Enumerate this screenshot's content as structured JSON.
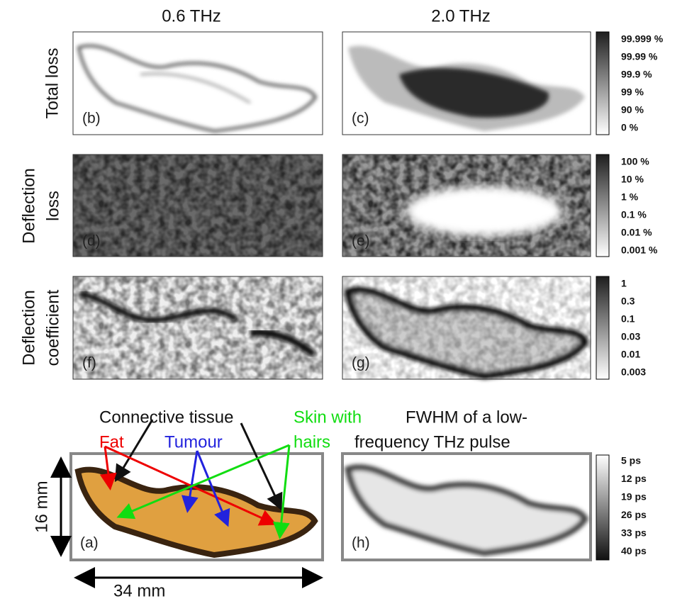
{
  "column_titles": [
    "0.6 THz",
    "2.0 THz"
  ],
  "rows": [
    {
      "label": [
        "Total loss"
      ],
      "panels": [
        "(b)",
        "(c)"
      ],
      "colorbar": [
        "99.999 %",
        "99.99 %",
        "99.9 %",
        "99 %",
        "90 %",
        "0 %"
      ]
    },
    {
      "label": [
        "Deflection",
        "loss"
      ],
      "panels": [
        "(d)",
        "(e)"
      ],
      "colorbar": [
        "100 %",
        "10 %",
        "1 %",
        "0.1 %",
        "0.01 %",
        "0.001 %"
      ]
    },
    {
      "label": [
        "Deflection",
        "coefficient"
      ],
      "panels": [
        "(f)",
        "(g)"
      ],
      "colorbar": [
        "1",
        "0.3",
        "0.1",
        "0.03",
        "0.01",
        "0.003"
      ]
    }
  ],
  "bottom": {
    "photo_panel": "(a)",
    "fwhm_panel": "(h)",
    "height": "16 mm",
    "width": "34 mm",
    "annotations": {
      "connective_tissue": "Connective tissue",
      "skin": [
        "Skin with",
        "hairs"
      ],
      "fat": "Fat",
      "tumour": "Tumour"
    },
    "fwhm_title": [
      "FWHM of a low-",
      "frequency THz pulse"
    ],
    "colorbar": [
      "5 ps",
      "12 ps",
      "19 ps",
      "26 ps",
      "33 ps",
      "40 ps"
    ]
  }
}
